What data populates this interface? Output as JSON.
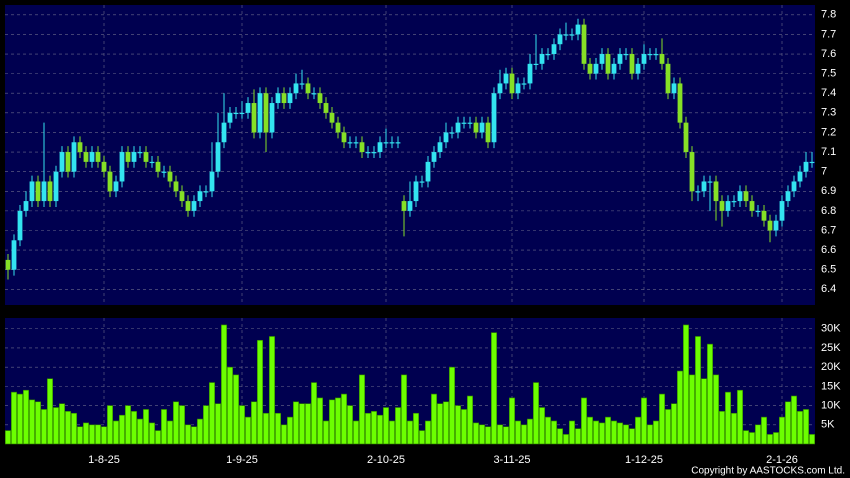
{
  "chart_data": {
    "type": "candlestick",
    "categories": [
      null,
      null,
      null,
      null,
      null,
      null,
      null,
      null,
      null,
      null,
      null,
      null,
      null,
      null,
      null,
      null,
      "1-8-25",
      null,
      null,
      null,
      null,
      null,
      null,
      null,
      null,
      null,
      null,
      null,
      null,
      null,
      null,
      null,
      null,
      null,
      null,
      null,
      null,
      null,
      null,
      "1-9-25",
      null,
      null,
      null,
      null,
      null,
      null,
      null,
      null,
      null,
      null,
      null,
      null,
      null,
      null,
      null,
      null,
      null,
      null,
      null,
      null,
      null,
      null,
      null,
      "2-10-25",
      null,
      null,
      null,
      null,
      null,
      null,
      null,
      null,
      null,
      null,
      null,
      null,
      null,
      null,
      null,
      null,
      null,
      null,
      null,
      null,
      "3-11-25",
      null,
      null,
      null,
      null,
      null,
      null,
      null,
      null,
      null,
      null,
      null,
      null,
      null,
      null,
      null,
      null,
      null,
      null,
      null,
      null,
      null,
      "1-12-25",
      null,
      null,
      null,
      null,
      null,
      null,
      null,
      null,
      null,
      null,
      null,
      null,
      null,
      null,
      null,
      null,
      null,
      null,
      null,
      null,
      null,
      null,
      "2-1-26",
      null,
      null,
      null,
      null,
      null
    ],
    "open": [
      6.55,
      6.5,
      6.65,
      6.8,
      6.85,
      6.95,
      6.85,
      6.95,
      6.85,
      7.0,
      7.1,
      7.0,
      7.15,
      7.1,
      7.05,
      7.1,
      7.05,
      7.0,
      6.9,
      6.95,
      7.1,
      7.05,
      7.1,
      7.1,
      7.05,
      7.05,
      7.0,
      7.0,
      6.95,
      6.9,
      6.85,
      6.8,
      6.85,
      6.9,
      6.9,
      7.0,
      7.15,
      7.25,
      7.3,
      7.3,
      7.3,
      7.35,
      7.2,
      7.4,
      7.2,
      7.35,
      7.4,
      7.35,
      7.4,
      7.45,
      7.45,
      7.4,
      7.4,
      7.35,
      7.3,
      7.25,
      7.2,
      7.15,
      7.15,
      7.15,
      7.1,
      7.1,
      7.1,
      7.15,
      7.15,
      7.15,
      6.85,
      6.8,
      6.85,
      6.95,
      6.95,
      7.05,
      7.1,
      7.15,
      7.2,
      7.2,
      7.25,
      7.25,
      7.25,
      7.2,
      7.25,
      7.15,
      7.4,
      7.45,
      7.5,
      7.4,
      7.45,
      7.45,
      7.55,
      7.55,
      7.6,
      7.6,
      7.65,
      7.7,
      7.7,
      7.7,
      7.75,
      7.55,
      7.5,
      7.55,
      7.6,
      7.5,
      7.55,
      7.6,
      7.6,
      7.5,
      7.55,
      7.6,
      7.6,
      7.6,
      7.55,
      7.4,
      7.45,
      7.25,
      7.1,
      6.9,
      6.9,
      6.95,
      6.95,
      6.85,
      6.8,
      6.85,
      6.85,
      6.9,
      6.85,
      6.8,
      6.8,
      6.75,
      6.7,
      6.75,
      6.85,
      6.9,
      6.95,
      7.0,
      7.05
    ],
    "high": [
      6.58,
      6.68,
      6.83,
      6.9,
      6.98,
      6.98,
      7.25,
      6.98,
      7.03,
      7.13,
      7.13,
      7.18,
      7.18,
      7.13,
      7.13,
      7.13,
      7.08,
      7.03,
      6.98,
      7.13,
      7.13,
      7.13,
      7.13,
      7.13,
      7.08,
      7.08,
      7.03,
      7.03,
      6.98,
      6.93,
      6.88,
      6.88,
      6.93,
      6.93,
      7.15,
      7.3,
      7.4,
      7.33,
      7.33,
      7.36,
      7.38,
      7.42,
      7.43,
      7.43,
      7.38,
      7.43,
      7.43,
      7.43,
      7.5,
      7.52,
      7.48,
      7.43,
      7.43,
      7.38,
      7.33,
      7.28,
      7.23,
      7.18,
      7.18,
      7.18,
      7.13,
      7.13,
      7.18,
      7.22,
      7.18,
      7.18,
      6.88,
      6.95,
      6.98,
      6.98,
      7.08,
      7.13,
      7.18,
      7.25,
      7.23,
      7.28,
      7.28,
      7.28,
      7.28,
      7.28,
      7.28,
      7.43,
      7.52,
      7.53,
      7.53,
      7.48,
      7.48,
      7.6,
      7.7,
      7.63,
      7.63,
      7.68,
      7.73,
      7.76,
      7.73,
      7.78,
      7.78,
      7.58,
      7.58,
      7.63,
      7.63,
      7.58,
      7.63,
      7.63,
      7.63,
      7.58,
      7.65,
      7.63,
      7.63,
      7.68,
      7.58,
      7.48,
      7.48,
      7.28,
      7.13,
      6.93,
      6.98,
      6.98,
      6.98,
      6.88,
      6.88,
      6.88,
      6.93,
      6.93,
      6.88,
      6.83,
      6.83,
      6.78,
      6.78,
      6.88,
      6.93,
      6.98,
      7.03,
      7.1,
      7.1
    ],
    "low": [
      6.45,
      6.47,
      6.62,
      6.77,
      6.82,
      6.82,
      6.82,
      6.82,
      6.82,
      6.97,
      6.97,
      6.97,
      7.07,
      7.02,
      7.02,
      7.02,
      6.97,
      6.87,
      6.87,
      6.92,
      7.02,
      7.02,
      7.07,
      7.02,
      7.02,
      6.97,
      6.97,
      6.92,
      6.87,
      6.82,
      6.77,
      6.77,
      6.82,
      6.87,
      6.87,
      6.97,
      7.12,
      7.22,
      7.27,
      7.27,
      7.27,
      7.17,
      7.17,
      7.1,
      7.17,
      7.32,
      7.32,
      7.32,
      7.37,
      7.42,
      7.37,
      7.37,
      7.32,
      7.27,
      7.22,
      7.17,
      7.12,
      7.12,
      7.12,
      7.07,
      7.07,
      7.07,
      7.07,
      7.12,
      7.12,
      7.12,
      6.67,
      6.77,
      6.82,
      6.92,
      6.92,
      7.02,
      7.07,
      7.12,
      7.17,
      7.17,
      7.22,
      7.22,
      7.17,
      7.17,
      7.12,
      7.12,
      7.37,
      7.42,
      7.37,
      7.37,
      7.42,
      7.42,
      7.52,
      7.52,
      7.57,
      7.57,
      7.62,
      7.67,
      7.67,
      7.67,
      7.52,
      7.47,
      7.47,
      7.52,
      7.47,
      7.47,
      7.52,
      7.57,
      7.47,
      7.47,
      7.52,
      7.57,
      7.57,
      7.52,
      7.37,
      7.37,
      7.22,
      7.07,
      6.85,
      6.85,
      6.87,
      6.8,
      6.75,
      6.72,
      6.77,
      6.82,
      6.82,
      6.82,
      6.77,
      6.77,
      6.72,
      6.64,
      6.67,
      6.72,
      6.82,
      6.87,
      6.92,
      6.97,
      7.02
    ],
    "close": [
      6.5,
      6.65,
      6.8,
      6.85,
      6.95,
      6.85,
      6.95,
      6.85,
      7.0,
      7.1,
      7.0,
      7.15,
      7.1,
      7.05,
      7.1,
      7.05,
      7.0,
      6.9,
      6.95,
      7.1,
      7.05,
      7.1,
      7.1,
      7.05,
      7.05,
      7.0,
      7.0,
      6.95,
      6.9,
      6.85,
      6.8,
      6.85,
      6.9,
      6.9,
      7.0,
      7.15,
      7.25,
      7.3,
      7.3,
      7.3,
      7.35,
      7.2,
      7.4,
      7.2,
      7.35,
      7.4,
      7.35,
      7.4,
      7.45,
      7.45,
      7.4,
      7.4,
      7.35,
      7.3,
      7.25,
      7.2,
      7.15,
      7.15,
      7.15,
      7.1,
      7.1,
      7.1,
      7.15,
      7.15,
      7.15,
      7.15,
      6.8,
      6.85,
      6.95,
      6.95,
      7.05,
      7.1,
      7.15,
      7.2,
      7.2,
      7.25,
      7.25,
      7.25,
      7.2,
      7.25,
      7.15,
      7.4,
      7.45,
      7.5,
      7.4,
      7.45,
      7.45,
      7.55,
      7.55,
      7.6,
      7.6,
      7.65,
      7.7,
      7.7,
      7.7,
      7.75,
      7.55,
      7.5,
      7.55,
      7.6,
      7.5,
      7.55,
      7.6,
      7.6,
      7.5,
      7.55,
      7.6,
      7.6,
      7.6,
      7.55,
      7.4,
      7.45,
      7.25,
      7.1,
      6.9,
      6.9,
      6.95,
      6.95,
      6.85,
      6.8,
      6.85,
      6.85,
      6.9,
      6.85,
      6.8,
      6.8,
      6.75,
      6.7,
      6.75,
      6.85,
      6.9,
      6.95,
      7.0,
      7.05,
      7.05
    ],
    "volume": [
      3500,
      13500,
      13000,
      14000,
      11500,
      11000,
      9000,
      17000,
      9500,
      10500,
      8500,
      8000,
      4500,
      5500,
      5000,
      5000,
      4500,
      10000,
      6000,
      7500,
      10000,
      8500,
      6500,
      9000,
      5500,
      3500,
      9000,
      6000,
      11000,
      10000,
      5000,
      4500,
      6500,
      10000,
      16000,
      10500,
      31000,
      20000,
      18000,
      10000,
      7000,
      11000,
      27000,
      8000,
      28000,
      8000,
      5000,
      7000,
      11000,
      10500,
      10500,
      16000,
      12000,
      6000,
      11500,
      12000,
      13000,
      10000,
      6000,
      18000,
      8000,
      8500,
      7500,
      9500,
      6000,
      9500,
      18000,
      6000,
      8000,
      3500,
      6000,
      13000,
      10500,
      11000,
      20000,
      10000,
      9000,
      12500,
      5500,
      5000,
      4500,
      29000,
      5000,
      4500,
      12000,
      6000,
      5000,
      6500,
      16000,
      9500,
      7000,
      6000,
      4000,
      2500,
      6000,
      4000,
      12000,
      7000,
      6000,
      5500,
      7000,
      6000,
      5500,
      5000,
      4000,
      7000,
      12000,
      5000,
      6000,
      13000,
      9000,
      10500,
      19000,
      31000,
      18000,
      28000,
      17000,
      26000,
      18000,
      8500,
      13500,
      8000,
      14000,
      3500,
      3000,
      5000,
      7000,
      2500,
      3000,
      7000,
      11000,
      12500,
      8500,
      9000,
      2500
    ],
    "ylim": [
      6.32,
      7.85
    ],
    "yticks": [
      6.4,
      6.5,
      6.6,
      6.7,
      6.8,
      6.9,
      7,
      7.1,
      7.2,
      7.3,
      7.4,
      7.5,
      7.6,
      7.7,
      7.8
    ],
    "volume_ylim": [
      0,
      32800
    ],
    "volume_yticks": [
      {
        "value": 5000,
        "label": "5K"
      },
      {
        "value": 10000,
        "label": "10K"
      },
      {
        "value": 15000,
        "label": "15K"
      },
      {
        "value": 20000,
        "label": "20K"
      },
      {
        "value": 25000,
        "label": "25K"
      },
      {
        "value": 30000,
        "label": "30K"
      }
    ],
    "up_color": "#33e4f0",
    "down_color": "#86e026",
    "volume_color": "#6cff00",
    "grid": true
  },
  "copyright": "Copyright by AASTOCKS.com Ltd."
}
